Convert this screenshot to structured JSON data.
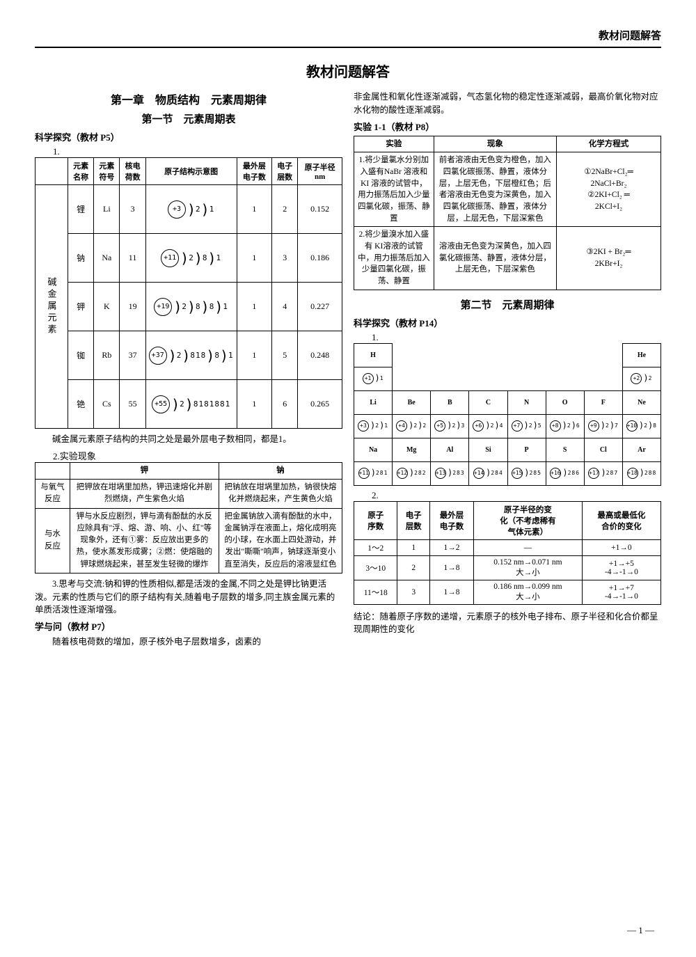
{
  "header": "教材问题解答",
  "main_title": "教材问题解答",
  "chapter": "第一章　物质结构　元素周期律",
  "section1": "第一节　元素周期表",
  "sci_explore1": "科学探究（教材 P5）",
  "num1": "1.",
  "alkali_table": {
    "headers": [
      "",
      "元素\n名称",
      "元素\n符号",
      "核电\n荷数",
      "原子结构示意图",
      "最外层\n电子数",
      "电子\n层数",
      "原子半径\nnm"
    ],
    "group_label": "碱金属元素",
    "rows": [
      {
        "name": "锂",
        "sym": "Li",
        "z": "3",
        "nucleus": "+3",
        "shells": "2 1",
        "outer": "1",
        "layers": "2",
        "radius": "0.152"
      },
      {
        "name": "钠",
        "sym": "Na",
        "z": "11",
        "nucleus": "+11",
        "shells": "2 8 1",
        "outer": "1",
        "layers": "3",
        "radius": "0.186"
      },
      {
        "name": "钾",
        "sym": "K",
        "z": "19",
        "nucleus": "+19",
        "shells": "2 8 8 1",
        "outer": "1",
        "layers": "4",
        "radius": "0.227"
      },
      {
        "name": "铷",
        "sym": "Rb",
        "z": "37",
        "nucleus": "+37",
        "shells": "2 818 8 1",
        "outer": "1",
        "layers": "5",
        "radius": "0.248"
      },
      {
        "name": "铯",
        "sym": "Cs",
        "z": "55",
        "nucleus": "+55",
        "shells": "2 8181881",
        "outer": "1",
        "layers": "6",
        "radius": "0.265"
      }
    ]
  },
  "alkali_conclusion": "碱金属元素原子结构的共同之处是最外层电子数相同，都是1。",
  "num2": "2.实验现象",
  "reaction_table": {
    "headers": [
      "",
      "钾",
      "钠"
    ],
    "row1_label": "与氧气\n反应",
    "row1_k": "把钾放在坩埚里加热，钾迅速熔化并剧烈燃烧，产生紫色火焰",
    "row1_na": "把钠放在坩埚里加热，钠很快熔化并燃烧起来，产生黄色火焰",
    "row2_label": "与水\n反应",
    "row2_k": "钾与水反应剧烈，钾与滴有酚酞的水反应除具有\"浮、熔、游、响、小、红\"等现象外，还有①雾：反应放出更多的热，使水蒸发形成雾；②燃：使熔融的钾球燃烧起来，甚至发生轻微的爆炸",
    "row2_na": "把金属钠放入滴有酚酞的水中，金属钠浮在液面上，熔化成明亮的小球，在水面上四处游动，并发出\"嘶嘶\"响声，钠球逐渐变小直至消失，反应后的溶液显红色"
  },
  "para3": "3.思考与交流:钠和钾的性质相似,都是活泼的金属,不同之处是钾比钠更活泼。元素的性质与它们的原子结构有关,随着电子层数的增多,同主族金属元素的单质活泼性逐渐增强。",
  "xue_yu_wen": "学与问（教材 P7）",
  "xue_yu_wen_text": "随着核电荷数的增加，原子核外电子层数增多，卤素的",
  "right_top": "非金属性和氧化性逐渐减弱，气态氢化物的稳定性逐渐减弱，最高价氧化物对应水化物的酸性逐渐减弱。",
  "exp_label": "实验 1-1（教材 P8）",
  "exp_table": {
    "headers": [
      "实验",
      "现象",
      "化学方程式"
    ],
    "row1_exp": "1.将少量氯水分别加入盛有NaBr 溶液和KI 溶液的试管中，用力振荡后加入少量四氯化碳，振荡、静置",
    "row1_phenom": "前者溶液由无色变为橙色，加入四氯化碳振荡、静置，液体分层，上层无色，下层橙红色；后者溶液由无色变为深黄色，加入四氯化碳振荡、静置，液体分层，上层无色，下层深紫色",
    "row1_eq": "①2NaBr+Cl₂═\n2NaCl+Br₂\n②2KI+Cl₂ ═\n2KCl+I₂",
    "row2_exp": "2.将少量溴水加入盛有 KI溶液的试管中，用力振荡后加入少量四氯化碳，振荡、静置",
    "row2_phenom": "溶液由无色变为深黄色，加入四氯化碳振荡、静置，液体分层，上层无色，下层深紫色",
    "row2_eq": "③2KI + Br₂═\n2KBr+I₂"
  },
  "section2": "第二节　元素周期律",
  "sci_explore2": "科学探究（教材 P14）",
  "periodic": {
    "row1": [
      {
        "sym": "H",
        "n": "+1",
        "s": "1"
      },
      {
        "sym": "He",
        "n": "+2",
        "s": "2"
      }
    ],
    "row2": [
      {
        "sym": "Li",
        "n": "+3",
        "s": "2 1"
      },
      {
        "sym": "Be",
        "n": "+4",
        "s": "2 2"
      },
      {
        "sym": "B",
        "n": "+5",
        "s": "2 3"
      },
      {
        "sym": "C",
        "n": "+6",
        "s": "2 4"
      },
      {
        "sym": "N",
        "n": "+7",
        "s": "2 5"
      },
      {
        "sym": "O",
        "n": "+8",
        "s": "2 6"
      },
      {
        "sym": "F",
        "n": "+9",
        "s": "2 7"
      },
      {
        "sym": "Ne",
        "n": "+10",
        "s": "2 8"
      }
    ],
    "row3": [
      {
        "sym": "Na",
        "n": "+11",
        "s": "281"
      },
      {
        "sym": "Mg",
        "n": "+12",
        "s": "282"
      },
      {
        "sym": "Al",
        "n": "+13",
        "s": "283"
      },
      {
        "sym": "Si",
        "n": "+14",
        "s": "284"
      },
      {
        "sym": "P",
        "n": "+15",
        "s": "285"
      },
      {
        "sym": "S",
        "n": "+16",
        "s": "286"
      },
      {
        "sym": "Cl",
        "n": "+17",
        "s": "287"
      },
      {
        "sym": "Ar",
        "n": "+18",
        "s": "288"
      }
    ]
  },
  "num2_right": "2.",
  "trend_table": {
    "headers": [
      "原子\n序数",
      "电子\n层数",
      "最外层\n电子数",
      "原子半径的变\n化（不考虑稀有\n气体元素）",
      "最高或最低化\n合价的变化"
    ],
    "rows": [
      {
        "a": "1～2",
        "b": "1",
        "c": "1→2",
        "d": "—",
        "e": "+1→0"
      },
      {
        "a": "3～10",
        "b": "2",
        "c": "1→8",
        "d": "0.152 nm→0.071 nm\n大→小",
        "e": "+1→+5\n-4→-1→0"
      },
      {
        "a": "11～18",
        "b": "3",
        "c": "1→8",
        "d": "0.186 nm→0.099 nm\n大→小",
        "e": "+1→+7\n-4→-1→0"
      }
    ]
  },
  "conclusion": "结论：随着原子序数的递增，元素原子的核外电子排布、原子半径和化合价都呈现周期性的变化",
  "page_num": "— 1 —"
}
